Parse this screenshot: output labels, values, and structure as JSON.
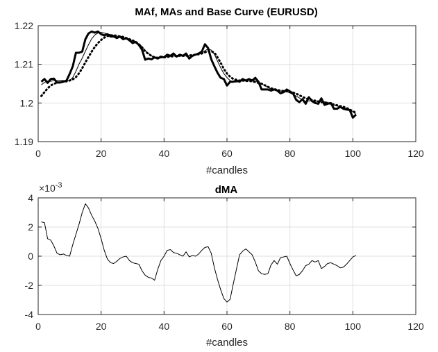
{
  "chart_data": [
    {
      "type": "line",
      "title": "MAf, MAs and Base Curve (EURUSD)",
      "xlabel": "#candles",
      "ylabel": "",
      "xlim": [
        0,
        120
      ],
      "ylim": [
        1.19,
        1.22
      ],
      "xticks": [
        0,
        20,
        40,
        60,
        80,
        100,
        120
      ],
      "yticks": [
        1.19,
        1.2,
        1.21,
        1.22
      ],
      "xtick_labels": [
        "0",
        "20",
        "40",
        "60",
        "80",
        "100",
        "120"
      ],
      "ytick_labels": [
        "1.19",
        "1.2",
        "1.21",
        "1.22"
      ],
      "grid": true,
      "series": [
        {
          "name": "Base Curve",
          "style": "thick-solid",
          "x": [
            1,
            2,
            3,
            4,
            5,
            6,
            7,
            8,
            9,
            10,
            11,
            12,
            13,
            14,
            15,
            16,
            17,
            18,
            19,
            20,
            21,
            22,
            23,
            24,
            25,
            26,
            27,
            28,
            29,
            30,
            31,
            32,
            33,
            34,
            35,
            36,
            37,
            38,
            39,
            40,
            41,
            42,
            43,
            44,
            45,
            46,
            47,
            48,
            49,
            50,
            51,
            52,
            53,
            54,
            55,
            56,
            57,
            58,
            59,
            60,
            61,
            62,
            63,
            64,
            65,
            66,
            67,
            68,
            69,
            70,
            71,
            72,
            73,
            74,
            75,
            76,
            77,
            78,
            79,
            80,
            81,
            82,
            83,
            84,
            85,
            86,
            87,
            88,
            89,
            90,
            91,
            92,
            93,
            94,
            95,
            96,
            97,
            98,
            99,
            100,
            101
          ],
          "y": [
            1.2055,
            1.2062,
            1.2052,
            1.2062,
            1.2063,
            1.2053,
            1.2053,
            1.2055,
            1.2058,
            1.2075,
            1.2095,
            1.213,
            1.213,
            1.2133,
            1.2165,
            1.218,
            1.2185,
            1.2182,
            1.2185,
            1.2178,
            1.2175,
            1.2178,
            1.2172,
            1.2172,
            1.2168,
            1.2172,
            1.2165,
            1.2168,
            1.2162,
            1.2155,
            1.2158,
            1.215,
            1.2138,
            1.2112,
            1.2115,
            1.2113,
            1.2118,
            1.2115,
            1.212,
            1.2118,
            1.2125,
            1.2122,
            1.2128,
            1.212,
            1.2125,
            1.2122,
            1.2128,
            1.2115,
            1.2122,
            1.2125,
            1.2128,
            1.2133,
            1.2152,
            1.2142,
            1.2113,
            1.2095,
            1.2078,
            1.2065,
            1.2062,
            1.2045,
            1.2055,
            1.2055,
            1.2058,
            1.2055,
            1.2062,
            1.2058,
            1.2062,
            1.2058,
            1.2065,
            1.2055,
            1.2035,
            1.2035,
            1.2035,
            1.2032,
            1.2035,
            1.2032,
            1.2025,
            1.2028,
            1.2035,
            1.203,
            1.2025,
            1.2008,
            1.2002,
            1.201,
            1.1998,
            1.2015,
            1.2005,
            1.2,
            1.1998,
            1.2012,
            1.1995,
            1.1998,
            1.2,
            1.1985,
            1.1985,
            1.199,
            1.1985,
            1.1983,
            1.1982,
            1.1962,
            1.197
          ]
        },
        {
          "name": "MAf",
          "style": "thin-solid",
          "x": [
            1,
            2,
            3,
            4,
            5,
            6,
            7,
            8,
            9,
            10,
            11,
            12,
            13,
            14,
            15,
            16,
            17,
            18,
            19,
            20,
            21,
            22,
            23,
            24,
            25,
            26,
            27,
            28,
            29,
            30,
            31,
            32,
            33,
            34,
            35,
            36,
            37,
            38,
            39,
            40,
            41,
            42,
            43,
            44,
            45,
            46,
            47,
            48,
            49,
            50,
            51,
            52,
            53,
            54,
            55,
            56,
            57,
            58,
            59,
            60,
            61,
            62,
            63,
            64,
            65,
            66,
            67,
            68,
            69,
            70,
            71,
            72,
            73,
            74,
            75,
            76,
            77,
            78,
            79,
            80,
            81,
            82,
            83,
            84,
            85,
            86,
            87,
            88,
            89,
            90,
            91,
            92,
            93,
            94,
            95,
            96,
            97,
            98,
            99,
            100,
            101
          ],
          "y": [
            1.2047,
            1.2053,
            1.2057,
            1.2056,
            1.2058,
            1.2058,
            1.2059,
            1.2058,
            1.2057,
            1.2058,
            1.2066,
            1.2082,
            1.2101,
            1.2116,
            1.2134,
            1.2151,
            1.2166,
            1.2176,
            1.2181,
            1.2183,
            1.2181,
            1.2179,
            1.2177,
            1.2175,
            1.2172,
            1.217,
            1.2169,
            1.2167,
            1.2164,
            1.2161,
            1.2158,
            1.2153,
            1.2146,
            1.2136,
            1.2129,
            1.2122,
            1.2117,
            1.2115,
            1.2117,
            1.2118,
            1.212,
            1.2121,
            1.2123,
            1.2123,
            1.2123,
            1.2123,
            1.2122,
            1.2122,
            1.2122,
            1.2124,
            1.2126,
            1.2129,
            1.2135,
            1.214,
            1.2137,
            1.2126,
            1.2108,
            1.2091,
            1.2076,
            1.2066,
            1.2058,
            1.2054,
            1.2054,
            1.2056,
            1.2058,
            1.2058,
            1.2059,
            1.2059,
            1.2057,
            1.2054,
            1.205,
            1.2045,
            1.204,
            1.2036,
            1.2035,
            1.2033,
            1.2031,
            1.203,
            1.2029,
            1.2026,
            1.2022,
            1.2018,
            1.2013,
            1.2008,
            1.2004,
            1.2005,
            1.2006,
            1.2005,
            1.2003,
            1.2003,
            1.2003,
            1.2002,
            1.1997,
            1.1994,
            1.1992,
            1.199,
            1.1988,
            1.1983,
            1.1981,
            1.1977,
            1.1971
          ]
        },
        {
          "name": "MAs",
          "style": "dotted",
          "x": [
            1,
            2,
            3,
            4,
            5,
            6,
            7,
            8,
            9,
            10,
            11,
            12,
            13,
            14,
            15,
            16,
            17,
            18,
            19,
            20,
            21,
            22,
            23,
            24,
            25,
            26,
            27,
            28,
            29,
            30,
            31,
            32,
            33,
            34,
            35,
            36,
            37,
            38,
            39,
            40,
            41,
            42,
            43,
            44,
            45,
            46,
            47,
            48,
            49,
            50,
            51,
            52,
            53,
            54,
            55,
            56,
            57,
            58,
            59,
            60,
            61,
            62,
            63,
            64,
            65,
            66,
            67,
            68,
            69,
            70,
            71,
            72,
            73,
            74,
            75,
            76,
            77,
            78,
            79,
            80,
            81,
            82,
            83,
            84,
            85,
            86,
            87,
            88,
            89,
            90,
            91,
            92,
            93,
            94,
            95,
            96,
            97,
            98,
            99,
            100,
            101
          ],
          "y": [
            1.2018,
            1.2028,
            1.2038,
            1.2045,
            1.205,
            1.2052,
            1.2054,
            1.2055,
            1.2056,
            1.2058,
            1.2061,
            1.2067,
            1.2077,
            1.209,
            1.2105,
            1.2119,
            1.2133,
            1.2145,
            1.2155,
            1.2163,
            1.2169,
            1.2173,
            1.2175,
            1.2175,
            1.2174,
            1.2172,
            1.2171,
            1.2168,
            1.2165,
            1.2162,
            1.2158,
            1.2152,
            1.2144,
            1.2134,
            1.2127,
            1.2122,
            1.2118,
            1.2117,
            1.2118,
            1.2118,
            1.2119,
            1.212,
            1.2121,
            1.2122,
            1.2122,
            1.2122,
            1.2122,
            1.2123,
            1.2124,
            1.2125,
            1.2126,
            1.2128,
            1.2131,
            1.2134,
            1.2134,
            1.213,
            1.2118,
            1.2104,
            1.2088,
            1.2076,
            1.2068,
            1.2062,
            1.206,
            1.2058,
            1.2058,
            1.2057,
            1.2057,
            1.2056,
            1.2054,
            1.2052,
            1.205,
            1.2046,
            1.2042,
            1.2038,
            1.2036,
            1.2034,
            1.2032,
            1.2031,
            1.203,
            1.2029,
            1.2027,
            1.2024,
            1.202,
            1.2016,
            1.2012,
            1.201,
            1.2008,
            1.2006,
            1.2004,
            1.2002,
            1.2001,
            1.2,
            1.1998,
            1.1996,
            1.1994,
            1.1992,
            1.199,
            1.1987,
            1.1983,
            1.1979,
            1.1974
          ]
        }
      ]
    },
    {
      "type": "line",
      "title": "dMA",
      "xlabel": "#candles",
      "ylabel": "",
      "exponent_label": "×10",
      "exponent_power": "-3",
      "xlim": [
        0,
        120
      ],
      "ylim": [
        -4,
        4
      ],
      "xticks": [
        0,
        20,
        40,
        60,
        80,
        100,
        120
      ],
      "yticks": [
        -4,
        -2,
        0,
        2,
        4
      ],
      "xtick_labels": [
        "0",
        "20",
        "40",
        "60",
        "80",
        "100",
        "120"
      ],
      "ytick_labels": [
        "-4",
        "-2",
        "0",
        "2",
        "4"
      ],
      "grid": true,
      "series": [
        {
          "name": "dMA",
          "style": "thin-solid",
          "x": [
            1,
            2,
            3,
            4,
            5,
            6,
            7,
            8,
            9,
            10,
            11,
            12,
            13,
            14,
            15,
            16,
            17,
            18,
            19,
            20,
            21,
            22,
            23,
            24,
            25,
            26,
            27,
            28,
            29,
            30,
            31,
            32,
            33,
            34,
            35,
            36,
            37,
            38,
            39,
            40,
            41,
            42,
            43,
            44,
            45,
            46,
            47,
            48,
            49,
            50,
            51,
            52,
            53,
            54,
            55,
            56,
            57,
            58,
            59,
            60,
            61,
            62,
            63,
            64,
            65,
            66,
            67,
            68,
            69,
            70,
            71,
            72,
            73,
            74,
            75,
            76,
            77,
            78,
            79,
            80,
            81,
            82,
            83,
            84,
            85,
            86,
            87,
            88,
            89,
            90,
            91,
            92,
            93,
            94,
            95,
            96,
            97,
            98,
            99,
            100,
            101
          ],
          "y": [
            2.35,
            2.3,
            1.2,
            1.1,
            0.7,
            0.2,
            0.1,
            0.15,
            0.05,
            0.0,
            0.8,
            1.5,
            2.2,
            3.0,
            3.6,
            3.3,
            2.8,
            2.4,
            1.9,
            1.2,
            0.4,
            -0.2,
            -0.45,
            -0.5,
            -0.35,
            -0.15,
            -0.05,
            0.0,
            -0.3,
            -0.45,
            -0.5,
            -0.55,
            -1.0,
            -1.3,
            -1.45,
            -1.5,
            -1.65,
            -0.9,
            -0.3,
            0.0,
            0.4,
            0.45,
            0.25,
            0.2,
            0.1,
            0.0,
            0.3,
            -0.05,
            0.05,
            0.0,
            0.15,
            0.4,
            0.6,
            0.65,
            0.2,
            -0.8,
            -1.6,
            -2.3,
            -2.9,
            -3.15,
            -2.95,
            -1.9,
            -0.9,
            0.1,
            0.35,
            0.5,
            0.3,
            0.1,
            -0.4,
            -1.0,
            -1.2,
            -1.25,
            -1.2,
            -0.6,
            -0.3,
            -0.55,
            -0.1,
            -0.05,
            0.0,
            -0.5,
            -0.95,
            -1.35,
            -1.25,
            -1.0,
            -0.65,
            -0.55,
            -0.3,
            -0.4,
            -0.3,
            -0.85,
            -0.7,
            -0.5,
            -0.45,
            -0.55,
            -0.65,
            -0.8,
            -0.75,
            -0.55,
            -0.3,
            -0.05,
            0.05
          ]
        }
      ]
    }
  ]
}
